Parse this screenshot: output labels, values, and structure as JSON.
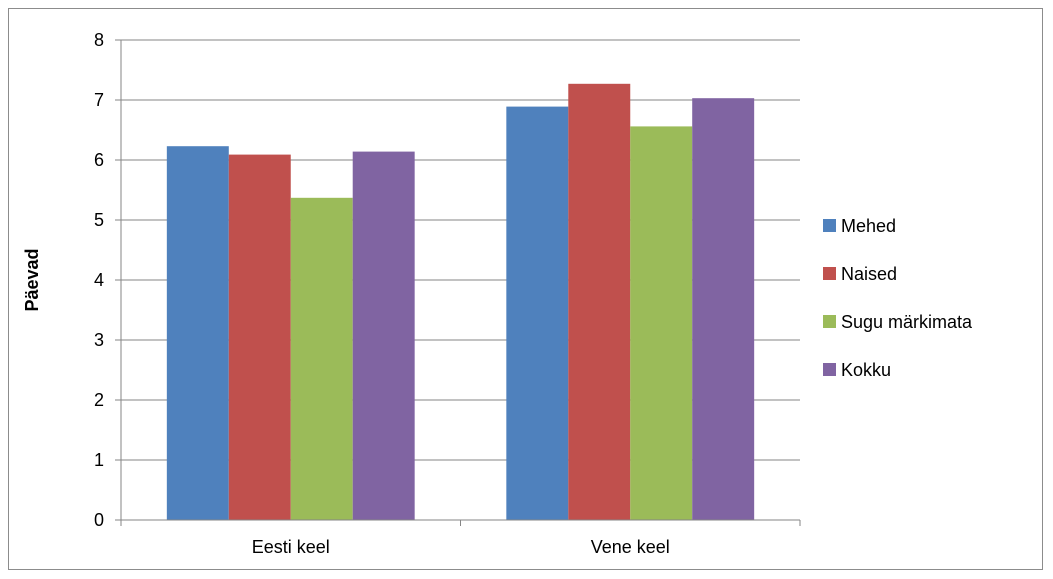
{
  "chart_data": {
    "type": "bar",
    "categories": [
      "Eesti keel",
      "Vene keel"
    ],
    "series": [
      {
        "name": "Mehed",
        "color": "#4F81BD",
        "values": [
          6.23,
          6.89
        ]
      },
      {
        "name": "Naised",
        "color": "#C0504D",
        "values": [
          6.09,
          7.27
        ]
      },
      {
        "name": "Sugu märkimata",
        "color": "#9BBB59",
        "values": [
          5.37,
          6.56
        ]
      },
      {
        "name": "Kokku",
        "color": "#8064A2",
        "values": [
          6.14,
          7.03
        ]
      }
    ],
    "title": "",
    "xlabel": "",
    "ylabel": "Päevad",
    "ylim": [
      0,
      8
    ],
    "yticks": [
      "0",
      "1",
      "2",
      "3",
      "4",
      "5",
      "6",
      "7",
      "8"
    ],
    "grid": true,
    "legend_position": "right"
  }
}
